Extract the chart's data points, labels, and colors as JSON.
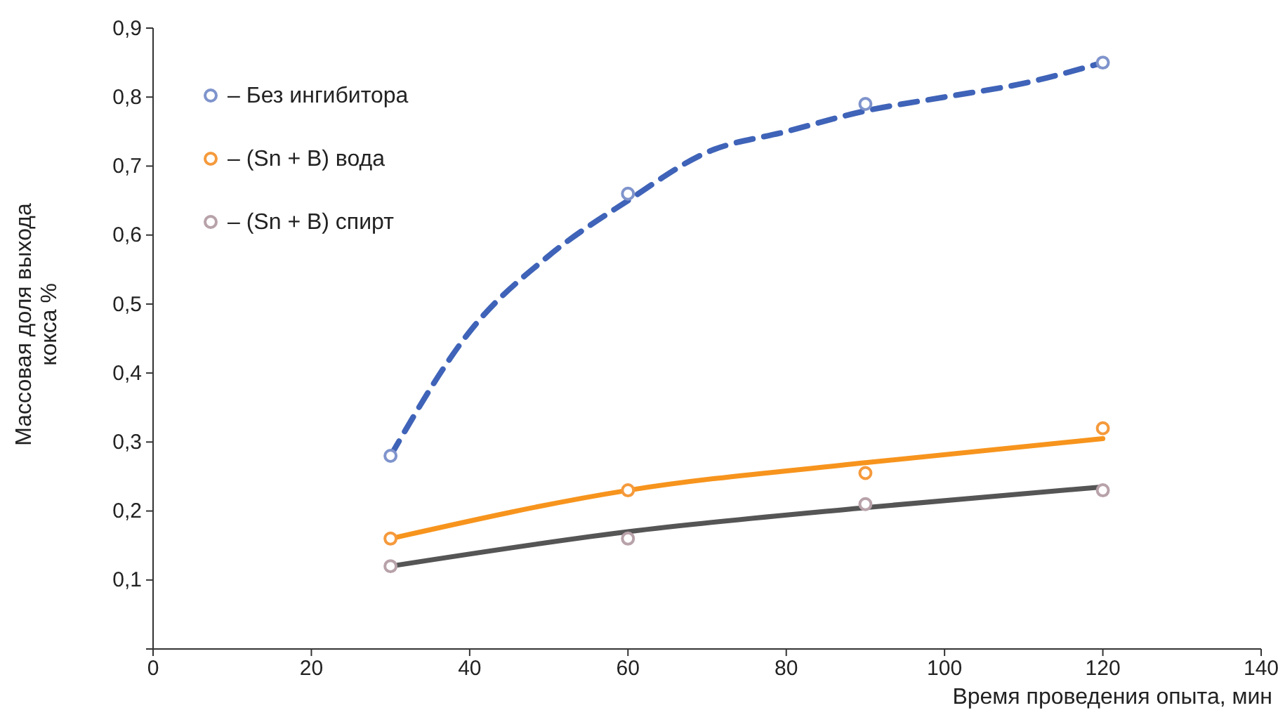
{
  "chart_data": {
    "type": "scatter",
    "xlabel": "Время проведения опыта, мин",
    "ylabel": "Массовая доля выхода кокса %",
    "xlim": [
      0,
      140
    ],
    "xticks": [
      0,
      20,
      40,
      60,
      80,
      100,
      120,
      140
    ],
    "ylim": [
      0,
      0.9
    ],
    "yticks": [
      {
        "value": 0,
        "label": null
      },
      {
        "value": 0.1,
        "label": "0,1"
      },
      {
        "value": 0.2,
        "label": "0,2"
      },
      {
        "value": 0.3,
        "label": "0,3"
      },
      {
        "value": 0.4,
        "label": "0,4"
      },
      {
        "value": 0.5,
        "label": "0,5"
      },
      {
        "value": 0.6,
        "label": "0,6"
      },
      {
        "value": 0.7,
        "label": "0,7"
      },
      {
        "value": 0.8,
        "label": "0,8"
      },
      {
        "value": 0.9,
        "label": "0,9"
      }
    ],
    "grid": false,
    "legend": "top left",
    "marker": "circle",
    "series": [
      {
        "type": "line",
        "marker": "none",
        "color": "#3f63b8",
        "line_style": "dashed",
        "x": [
          30,
          40,
          50,
          60,
          70,
          80,
          90,
          100,
          110,
          120
        ],
        "values": [
          0.28,
          0.46,
          0.57,
          0.65,
          0.72,
          0.75,
          0.78,
          0.8,
          0.82,
          0.85
        ]
      },
      {
        "type": "line",
        "marker": "none",
        "color": "#f7941d",
        "line_style": "solid",
        "x": [
          30,
          60,
          90,
          120
        ],
        "values": [
          0.16,
          0.23,
          0.27,
          0.305
        ]
      },
      {
        "type": "line",
        "marker": "none",
        "color": "#555555",
        "line_style": "solid",
        "x": [
          30,
          60,
          90,
          120
        ],
        "values": [
          0.12,
          0.17,
          0.205,
          0.235
        ]
      },
      {
        "name": "– Без ингибитора",
        "color": "#7f94cc",
        "x": [
          30,
          60,
          90,
          120
        ],
        "values": [
          0.28,
          0.66,
          0.79,
          0.85
        ]
      },
      {
        "name": "– (Sn + B) вода",
        "color": "#f59a3c",
        "x": [
          30,
          60,
          90,
          120
        ],
        "values": [
          0.16,
          0.23,
          0.255,
          0.32
        ]
      },
      {
        "name": "– (Sn + B) спирт",
        "color": "#b8a2aa",
        "x": [
          30,
          60,
          90,
          120
        ],
        "values": [
          0.12,
          0.16,
          0.21,
          0.23
        ]
      }
    ]
  }
}
